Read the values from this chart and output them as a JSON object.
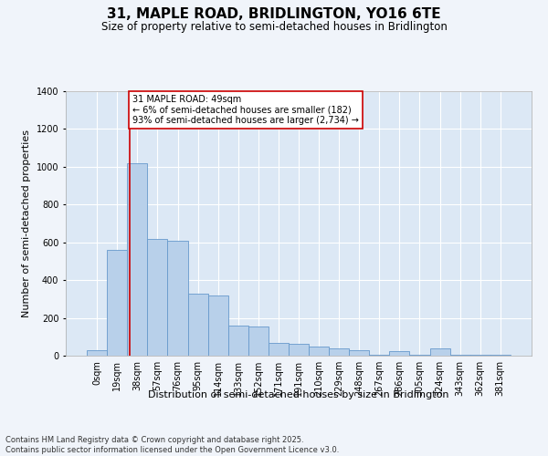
{
  "title": "31, MAPLE ROAD, BRIDLINGTON, YO16 6TE",
  "subtitle": "Size of property relative to semi-detached houses in Bridlington",
  "xlabel": "Distribution of semi-detached houses by size in Bridlington",
  "ylabel": "Number of semi-detached properties",
  "bar_labels": [
    "0sqm",
    "19sqm",
    "38sqm",
    "57sqm",
    "76sqm",
    "95sqm",
    "114sqm",
    "133sqm",
    "152sqm",
    "171sqm",
    "191sqm",
    "210sqm",
    "229sqm",
    "248sqm",
    "267sqm",
    "286sqm",
    "305sqm",
    "324sqm",
    "343sqm",
    "362sqm",
    "381sqm"
  ],
  "bar_values": [
    30,
    560,
    1020,
    620,
    610,
    330,
    320,
    160,
    155,
    70,
    65,
    50,
    40,
    30,
    5,
    25,
    5,
    40,
    5,
    5,
    5
  ],
  "bar_color": "#b8d0ea",
  "bar_edgecolor": "#6699cc",
  "background_color": "#dce8f5",
  "grid_color": "#ffffff",
  "red_line_x": 1.62,
  "annotation_text": "31 MAPLE ROAD: 49sqm\n← 6% of semi-detached houses are smaller (182)\n93% of semi-detached houses are larger (2,734) →",
  "annotation_box_color": "#ffffff",
  "annotation_box_edgecolor": "#cc0000",
  "ylim": [
    0,
    1400
  ],
  "yticks": [
    0,
    200,
    400,
    600,
    800,
    1000,
    1200,
    1400
  ],
  "footer_text": "Contains HM Land Registry data © Crown copyright and database right 2025.\nContains public sector information licensed under the Open Government Licence v3.0.",
  "title_fontsize": 11,
  "subtitle_fontsize": 8.5,
  "tick_fontsize": 7,
  "ylabel_fontsize": 8,
  "xlabel_fontsize": 8,
  "annotation_fontsize": 7,
  "footer_fontsize": 6
}
